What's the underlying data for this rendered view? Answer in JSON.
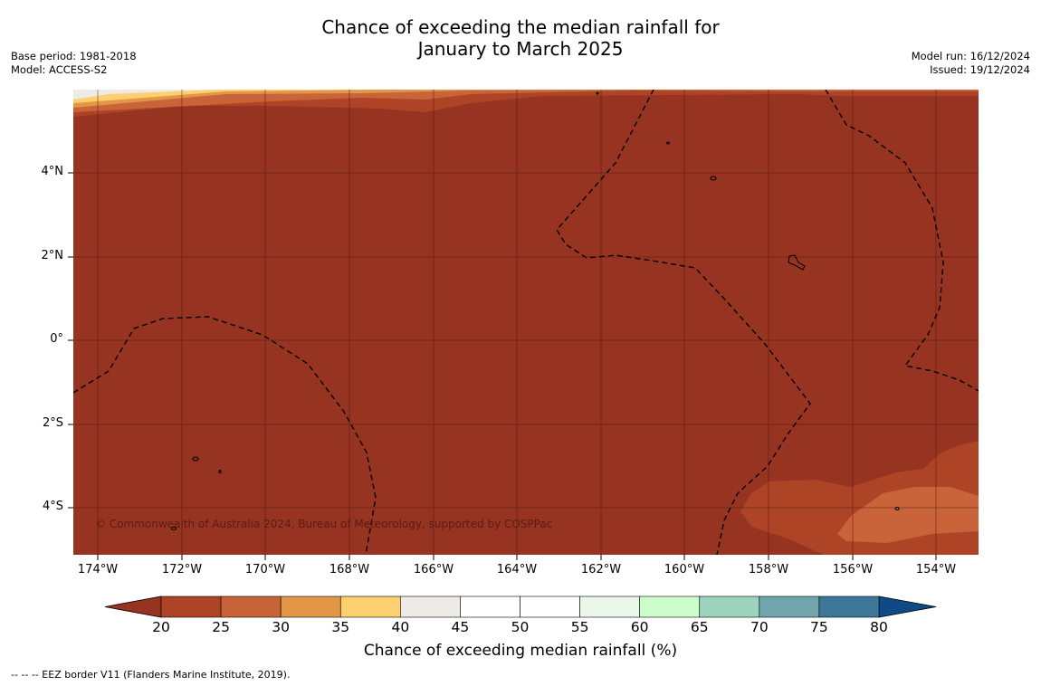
{
  "title": {
    "line1": "Chance of exceeding the median rainfall for",
    "line2": "January to March 2025"
  },
  "meta_left": {
    "base_period": "Base period: 1981-2018",
    "model": "Model: ACCESS-S2"
  },
  "meta_right": {
    "model_run": "Model run: 16/12/2024",
    "issued": "Issued: 19/12/2024"
  },
  "map": {
    "lat_labels": [
      "4°N",
      "2°N",
      "0°",
      "2°S",
      "4°S"
    ],
    "lon_labels": [
      "174°W",
      "172°W",
      "170°W",
      "168°W",
      "166°W",
      "164°W",
      "162°W",
      "160°W",
      "158°W",
      "156°W",
      "154°W"
    ],
    "copyright": "© Commonwealth of Australia 2024, Bureau of Meteorology, supported by COSPPac",
    "base_color": "#973321"
  },
  "colorbar": {
    "title": "Chance of exceeding median rainfall (%)",
    "ticks": [
      "20",
      "25",
      "30",
      "35",
      "40",
      "45",
      "50",
      "55",
      "60",
      "65",
      "70",
      "75",
      "80"
    ],
    "colors": [
      "#ad4425",
      "#c8633a",
      "#e29648",
      "#fdcf6e",
      "#eeebe6",
      "#ffffff",
      "#ffffff",
      "#eaf7ea",
      "#ccfecc",
      "#9dd2bc",
      "#70a6ab",
      "#3c7698"
    ],
    "under_color": "#973321",
    "over_color": "#0e4a85"
  },
  "footer": "--  --  -- EEZ border V11 (Flanders Marine Institute, 2019)."
}
